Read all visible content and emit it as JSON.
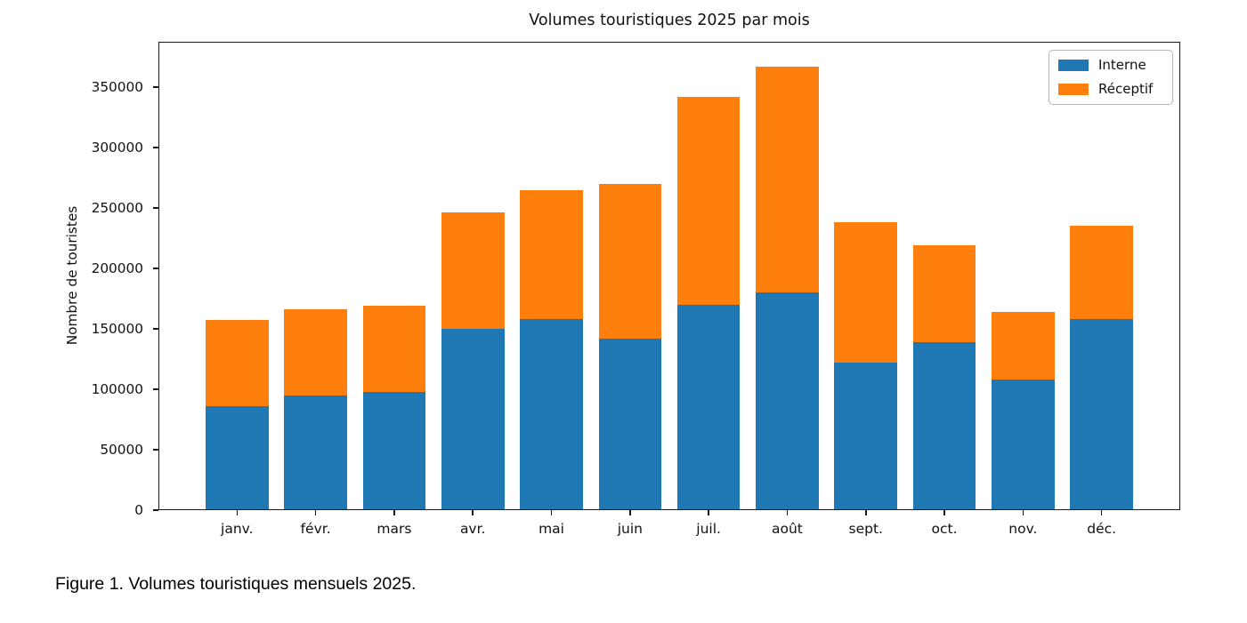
{
  "figure": {
    "caption": "Figure 1. Volumes touristiques mensuels 2025."
  },
  "chart_data": {
    "type": "bar",
    "stacked": true,
    "title": "Volumes touristiques 2025 par mois",
    "xlabel": "",
    "ylabel": "Nombre de touristes",
    "categories": [
      "janv.",
      "févr.",
      "mars",
      "avr.",
      "mai",
      "juin",
      "juil.",
      "août",
      "sept.",
      "oct.",
      "nov.",
      "déc."
    ],
    "series": [
      {
        "name": "Interne",
        "color": "#1f77b4",
        "values": [
          86000,
          95000,
          98000,
          150000,
          158000,
          142000,
          170000,
          180000,
          122000,
          139000,
          108000,
          158000
        ]
      },
      {
        "name": "Réceptif",
        "color": "#ff7f0e",
        "values": [
          71000,
          71000,
          71000,
          96000,
          107000,
          128000,
          172000,
          187000,
          116000,
          80000,
          56000,
          77000
        ]
      }
    ],
    "yticks": [
      0,
      50000,
      100000,
      150000,
      200000,
      250000,
      300000,
      350000
    ],
    "ylim": [
      0,
      387500
    ],
    "grid": false,
    "legend_position": "upper right",
    "axis_text_color": "#111111",
    "frame_color": "#1a1a1a"
  }
}
